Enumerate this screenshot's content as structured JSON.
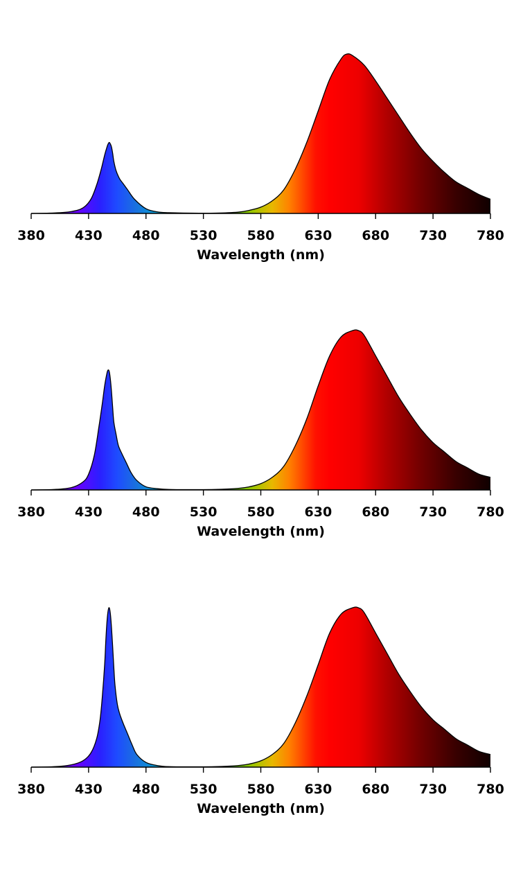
{
  "chart_data": [
    {
      "type": "area",
      "xlabel": "Wavelength (nm)",
      "xlim": [
        380,
        780
      ],
      "xticks": [
        "380",
        "430",
        "480",
        "530",
        "580",
        "630",
        "680",
        "730",
        "780"
      ],
      "grid": false,
      "series": [
        {
          "x": [
            380,
            400,
            415,
            425,
            432,
            437,
            441,
            444,
            446,
            447,
            448,
            449,
            450,
            451,
            452,
            454,
            457,
            460,
            464,
            470,
            480,
            490,
            500,
            520,
            540,
            560,
            570,
            580,
            590,
            600,
            610,
            620,
            630,
            640,
            650,
            655,
            660,
            670,
            680,
            690,
            700,
            710,
            720,
            730,
            740,
            750,
            760,
            770,
            780
          ],
          "y": [
            0,
            0.3,
            1.2,
            3.5,
            9,
            18,
            28,
            37,
            42,
            44,
            45,
            44,
            42,
            38,
            33,
            27,
            22,
            19,
            15,
            9,
            3,
            1,
            0.5,
            0.2,
            0.2,
            0.8,
            2,
            4,
            8,
            15,
            28,
            45,
            65,
            85,
            98,
            101,
            100,
            94,
            84,
            73,
            62,
            51,
            41,
            33,
            26,
            20,
            16,
            12,
            9
          ]
        }
      ]
    },
    {
      "type": "area",
      "xlabel": "Wavelength (nm)",
      "xlim": [
        380,
        780
      ],
      "xticks": [
        "380",
        "430",
        "480",
        "530",
        "580",
        "630",
        "680",
        "730",
        "780"
      ],
      "grid": false,
      "series": [
        {
          "x": [
            380,
            400,
            415,
            425,
            430,
            435,
            439,
            442,
            444,
            446,
            447,
            448,
            449,
            450,
            451,
            452,
            454,
            456,
            459,
            463,
            467,
            472,
            480,
            490,
            500,
            520,
            540,
            560,
            570,
            580,
            590,
            600,
            610,
            620,
            630,
            640,
            650,
            660,
            665,
            670,
            680,
            690,
            700,
            710,
            720,
            730,
            740,
            750,
            760,
            770,
            780
          ],
          "y": [
            0,
            0.3,
            1.5,
            5,
            10,
            22,
            40,
            55,
            66,
            74,
            76,
            75,
            70,
            62,
            52,
            43,
            35,
            28,
            23,
            17,
            11,
            6,
            2,
            0.8,
            0.3,
            0.2,
            0.3,
            1,
            2,
            4,
            8,
            15,
            28,
            45,
            66,
            85,
            97,
            101,
            101,
            98,
            85,
            72,
            59,
            48,
            38,
            30,
            24,
            18,
            14,
            10,
            8
          ]
        }
      ]
    },
    {
      "type": "area",
      "xlabel": "Wavelength (nm)",
      "xlim": [
        380,
        780
      ],
      "xticks": [
        "380",
        "430",
        "480",
        "530",
        "580",
        "630",
        "680",
        "730",
        "780"
      ],
      "grid": false,
      "series": [
        {
          "x": [
            380,
            400,
            415,
            425,
            432,
            437,
            440,
            442,
            444,
            445,
            446,
            447,
            448,
            449,
            450,
            451,
            452,
            453,
            455,
            457,
            460,
            464,
            468,
            472,
            480,
            490,
            500,
            520,
            540,
            560,
            570,
            580,
            590,
            600,
            610,
            620,
            630,
            640,
            650,
            660,
            665,
            670,
            680,
            690,
            700,
            710,
            720,
            730,
            740,
            750,
            760,
            770,
            780
          ],
          "y": [
            0,
            0.3,
            1.5,
            4,
            9,
            18,
            30,
            45,
            65,
            80,
            92,
            99,
            101,
            97,
            88,
            76,
            63,
            52,
            40,
            34,
            28,
            21,
            14,
            8,
            3,
            1,
            0.3,
            0.2,
            0.3,
            1,
            2,
            4,
            8,
            15,
            28,
            45,
            65,
            85,
            97,
            101,
            101,
            98,
            85,
            72,
            59,
            48,
            38,
            30,
            24,
            18,
            14,
            10,
            8
          ]
        }
      ]
    }
  ]
}
